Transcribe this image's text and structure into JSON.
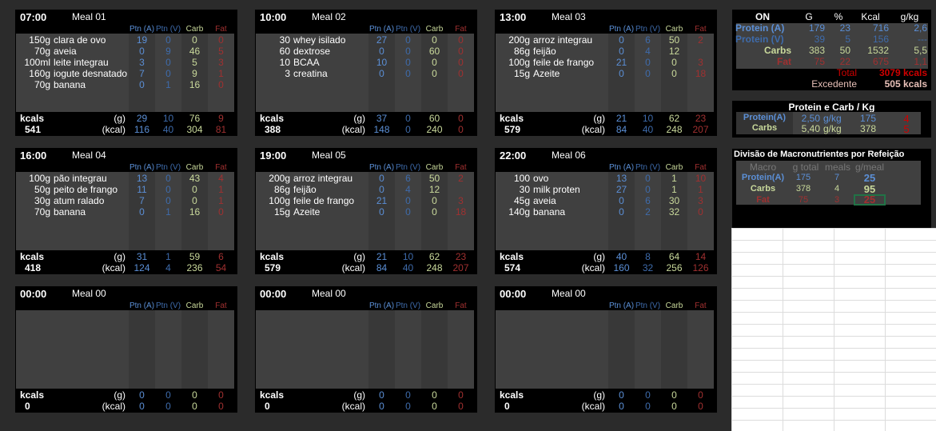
{
  "columns": [
    "Ptn (A)",
    "Ptn (V)",
    "Carb",
    "Fat"
  ],
  "footer_labels": {
    "kcals": "kcals",
    "grams": "(g)",
    "kcal": "(kcal)"
  },
  "colors": {
    "protein_a": "#5b8fd6",
    "protein_v": "#3e6bab",
    "carb": "#c9d99b",
    "fat": "#a03030",
    "total": "#d00000"
  },
  "meals": [
    {
      "time": "07:00",
      "label": "Meal 01",
      "kcal": "541",
      "g": [
        "29",
        "10",
        "76",
        "9"
      ],
      "kc": [
        "116",
        "40",
        "304",
        "81"
      ],
      "items": [
        {
          "qty": "150g",
          "name": "clara de ovo",
          "v": [
            "19",
            "0",
            "0",
            "0"
          ]
        },
        {
          "qty": "70g",
          "name": "aveia",
          "v": [
            "0",
            "9",
            "46",
            "5"
          ]
        },
        {
          "qty": "100ml",
          "name": "leite integrau",
          "v": [
            "3",
            "0",
            "5",
            "3"
          ]
        },
        {
          "qty": "160g",
          "name": "iogute desnatado",
          "v": [
            "7",
            "0",
            "9",
            "1"
          ]
        },
        {
          "qty": "70g",
          "name": "banana",
          "v": [
            "0",
            "1",
            "16",
            "0"
          ]
        }
      ]
    },
    {
      "time": "10:00",
      "label": "Meal 02",
      "kcal": "388",
      "g": [
        "37",
        "0",
        "60",
        "0"
      ],
      "kc": [
        "148",
        "0",
        "240",
        "0"
      ],
      "items": [
        {
          "qty": "30",
          "name": "whey isilado",
          "v": [
            "27",
            "0",
            "0",
            "0"
          ]
        },
        {
          "qty": "60",
          "name": "dextrose",
          "v": [
            "0",
            "0",
            "60",
            "0"
          ]
        },
        {
          "qty": "10",
          "name": "BCAA",
          "v": [
            "10",
            "0",
            "0",
            "0"
          ]
        },
        {
          "qty": "3",
          "name": "creatina",
          "v": [
            "0",
            "0",
            "0",
            "0"
          ]
        }
      ]
    },
    {
      "time": "13:00",
      "label": "Meal 03",
      "kcal": "579",
      "g": [
        "21",
        "10",
        "62",
        "23"
      ],
      "kc": [
        "84",
        "40",
        "248",
        "207"
      ],
      "items": [
        {
          "qty": "200g",
          "name": "arroz integrau",
          "v": [
            "0",
            "6",
            "50",
            "2"
          ]
        },
        {
          "qty": "86g",
          "name": "feijão",
          "v": [
            "0",
            "4",
            "12",
            ""
          ]
        },
        {
          "qty": "100g",
          "name": "feile de frango",
          "v": [
            "21",
            "0",
            "0",
            "3"
          ]
        },
        {
          "qty": "15g",
          "name": "Azeite",
          "v": [
            "0",
            "0",
            "0",
            "18"
          ]
        }
      ]
    },
    {
      "time": "16:00",
      "label": "Meal 04",
      "kcal": "418",
      "g": [
        "31",
        "1",
        "59",
        "6"
      ],
      "kc": [
        "124",
        "4",
        "236",
        "54"
      ],
      "items": [
        {
          "qty": "100g",
          "name": "pão integrau",
          "v": [
            "13",
            "0",
            "43",
            "4"
          ]
        },
        {
          "qty": "50g",
          "name": "peito de frango",
          "v": [
            "11",
            "0",
            "0",
            "1"
          ]
        },
        {
          "qty": "30g",
          "name": "atum ralado",
          "v": [
            "7",
            "0",
            "0",
            "1"
          ]
        },
        {
          "qty": "70g",
          "name": "banana",
          "v": [
            "0",
            "1",
            "16",
            "0"
          ]
        }
      ]
    },
    {
      "time": "19:00",
      "label": "Meal 05",
      "kcal": "579",
      "g": [
        "21",
        "10",
        "62",
        "23"
      ],
      "kc": [
        "84",
        "40",
        "248",
        "207"
      ],
      "items": [
        {
          "qty": "200g",
          "name": "arroz integrau",
          "v": [
            "0",
            "6",
            "50",
            "2"
          ]
        },
        {
          "qty": "86g",
          "name": "feijão",
          "v": [
            "0",
            "4",
            "12",
            ""
          ]
        },
        {
          "qty": "100g",
          "name": "feile de frango",
          "v": [
            "21",
            "0",
            "0",
            "3"
          ]
        },
        {
          "qty": "15g",
          "name": "Azeite",
          "v": [
            "0",
            "0",
            "0",
            "18"
          ]
        }
      ]
    },
    {
      "time": "22:00",
      "label": "Meal 06",
      "kcal": "574",
      "g": [
        "40",
        "8",
        "64",
        "14"
      ],
      "kc": [
        "160",
        "32",
        "256",
        "126"
      ],
      "items": [
        {
          "qty": "100",
          "name": "ovo",
          "v": [
            "13",
            "0",
            "1",
            "10"
          ]
        },
        {
          "qty": "30",
          "name": "milk proten",
          "v": [
            "27",
            "0",
            "1",
            "1"
          ]
        },
        {
          "qty": "45g",
          "name": "aveia",
          "v": [
            "0",
            "6",
            "30",
            "3"
          ]
        },
        {
          "qty": "140g",
          "name": "banana",
          "v": [
            "0",
            "2",
            "32",
            "0"
          ]
        }
      ]
    },
    {
      "time": "00:00",
      "label": "Meal 00",
      "kcal": "0",
      "g": [
        "0",
        "0",
        "0",
        "0"
      ],
      "kc": [
        "0",
        "0",
        "0",
        "0"
      ],
      "items": []
    },
    {
      "time": "00:00",
      "label": "Meal 00",
      "kcal": "0",
      "g": [
        "0",
        "0",
        "0",
        "0"
      ],
      "kc": [
        "0",
        "0",
        "0",
        "0"
      ],
      "items": []
    },
    {
      "time": "00:00",
      "label": "Meal 00",
      "kcal": "0",
      "g": [
        "0",
        "0",
        "0",
        "0"
      ],
      "kc": [
        "0",
        "0",
        "0",
        "0"
      ],
      "items": []
    }
  ],
  "summary": {
    "headers": [
      "ON",
      "G",
      "%",
      "Kcal",
      "g/kg"
    ],
    "rows": [
      {
        "label": "Protein (A)",
        "v": [
          "179",
          "23",
          "716",
          "2,6"
        ]
      },
      {
        "label": "Protein (V)",
        "v": [
          "39",
          "5",
          "156",
          "---"
        ]
      },
      {
        "label": "Carbs",
        "v": [
          "383",
          "50",
          "1532",
          "5,5"
        ]
      },
      {
        "label": "Fat",
        "v": [
          "75",
          "22",
          "675",
          "1,1"
        ]
      }
    ],
    "total_label": "Total",
    "total_value": "3079 kcals",
    "excess_label": "Excedente",
    "excess_value": "505 kcals"
  },
  "per_kg": {
    "title": "Protein e Carb / Kg",
    "rows": [
      {
        "label": "Protein(A)",
        "ratio": "2,50",
        "unit": "g/kg",
        "grams": "175",
        "n": "4"
      },
      {
        "label": "Carbs",
        "ratio": "5,40",
        "unit": "g/kg",
        "grams": "378",
        "n": "5"
      }
    ]
  },
  "division": {
    "title": "Divisão de Macronutrientes por Refeição",
    "headers": [
      "Macro",
      "g total",
      "meals",
      "g/meal"
    ],
    "rows": [
      {
        "label": "Protein(A)",
        "v": [
          "175",
          "7",
          "25"
        ]
      },
      {
        "label": "Carbs",
        "v": [
          "378",
          "4",
          "95"
        ]
      },
      {
        "label": "Fat",
        "v": [
          "75",
          "3",
          "25"
        ]
      }
    ]
  }
}
